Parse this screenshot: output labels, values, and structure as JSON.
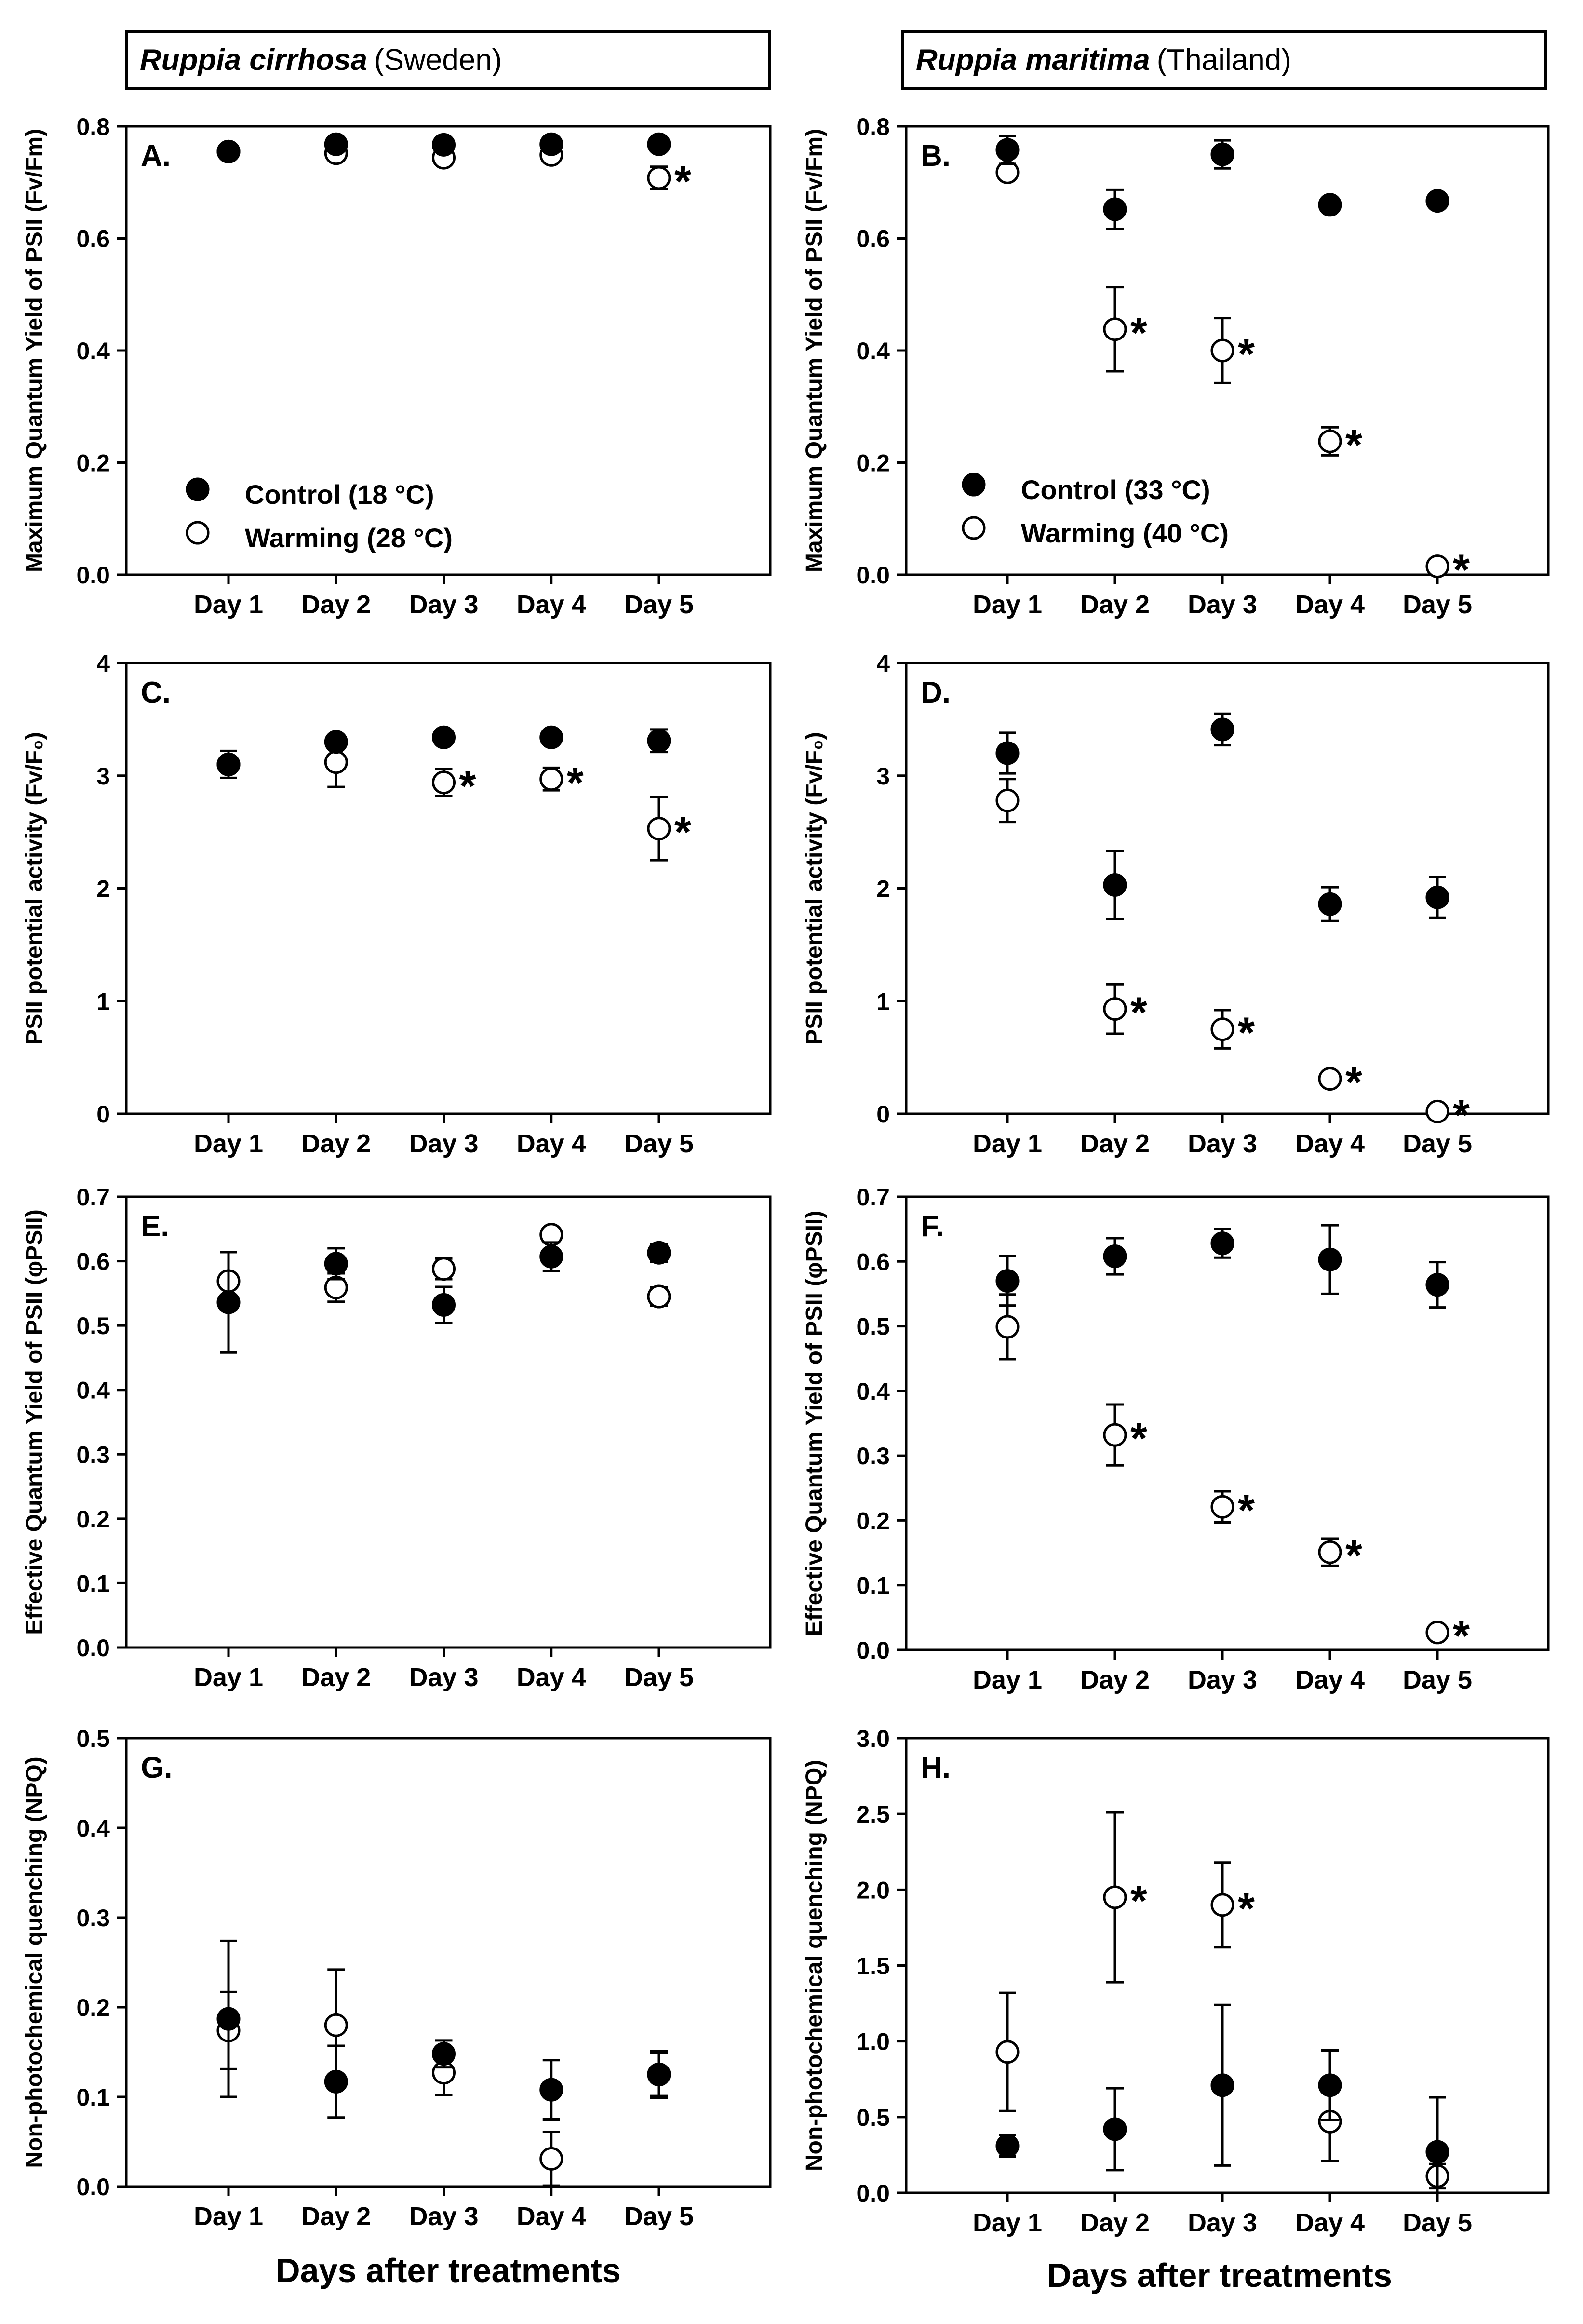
{
  "headers": {
    "left": {
      "species": "Ruppia cirrhosa",
      "location": "(Sweden)"
    },
    "right": {
      "species": "Ruppia maritima",
      "location": "(Thailand)"
    }
  },
  "x_axis_title": "Days after treatments",
  "legend_left": {
    "control": "Control (18 °C)",
    "warming": "Warming (28 °C)"
  },
  "legend_right": {
    "control": "Control (33 °C)",
    "warming": "Warming (40 °C)"
  },
  "colors": {
    "control_fill": "#000000",
    "warming_fill": "#ffffff",
    "stroke": "#000000"
  },
  "chart_data": [
    {
      "type": "scatter",
      "panel": "A.",
      "ylabel": "Maximum Quantum Yield of PSII (Fv/Fm)",
      "ylim": [
        0,
        0.8
      ],
      "yticks": [
        "0.0",
        "0.2",
        "0.4",
        "0.6",
        "0.8"
      ],
      "categories": [
        "Day 1",
        "Day 2",
        "Day 3",
        "Day 4",
        "Day 5"
      ],
      "series": [
        {
          "name": "Control",
          "values": [
            0.755,
            0.768,
            0.767,
            0.768,
            0.768
          ],
          "errors": [
            0.005,
            0.008,
            0.006,
            0.006,
            0.006
          ]
        },
        {
          "name": "Warming",
          "values": [
            0.755,
            0.752,
            0.744,
            0.749,
            0.708
          ],
          "errors": [
            0.005,
            0.006,
            0.006,
            0.006,
            0.02
          ]
        }
      ],
      "significant": [
        false,
        false,
        false,
        false,
        true
      ],
      "significance_mark": "*"
    },
    {
      "type": "scatter",
      "panel": "B.",
      "ylabel": "Maximum Quantum Yield of PSII (Fv/Fm)",
      "ylim": [
        0,
        0.8
      ],
      "yticks": [
        "0.0",
        "0.2",
        "0.4",
        "0.6",
        "0.8"
      ],
      "categories": [
        "Day 1",
        "Day 2",
        "Day 3",
        "Day 4",
        "Day 5"
      ],
      "series": [
        {
          "name": "Control",
          "values": [
            0.758,
            0.652,
            0.75,
            0.66,
            0.667
          ],
          "errors": [
            0.025,
            0.035,
            0.025,
            0.008,
            0.008
          ]
        },
        {
          "name": "Warming",
          "values": [
            0.718,
            0.438,
            0.4,
            0.238,
            0.015
          ],
          "errors": [
            0.012,
            0.075,
            0.058,
            0.025,
            0.004
          ]
        }
      ],
      "significant": [
        false,
        true,
        true,
        true,
        true
      ],
      "significance_mark": "*"
    },
    {
      "type": "scatter",
      "panel": "C.",
      "ylabel": "PSII potential activity (Fv/F₀)",
      "ylim": [
        0,
        4
      ],
      "yticks": [
        "0",
        "1",
        "2",
        "3",
        "4"
      ],
      "categories": [
        "Day 1",
        "Day 2",
        "Day 3",
        "Day 4",
        "Day 5"
      ],
      "series": [
        {
          "name": "Control",
          "values": [
            3.1,
            3.3,
            3.34,
            3.34,
            3.31
          ],
          "errors": [
            0.05,
            0.05,
            0.05,
            0.05,
            0.1
          ]
        },
        {
          "name": "Warming",
          "values": [
            3.1,
            3.12,
            2.94,
            2.97,
            2.53
          ],
          "errors": [
            0.12,
            0.22,
            0.12,
            0.1,
            0.28
          ]
        }
      ],
      "significant": [
        false,
        false,
        true,
        true,
        true
      ],
      "significance_mark": "*"
    },
    {
      "type": "scatter",
      "panel": "D.",
      "ylabel": "PSII potential activity (Fv/F₀)",
      "ylim": [
        0,
        4
      ],
      "yticks": [
        "0",
        "1",
        "2",
        "3",
        "4"
      ],
      "categories": [
        "Day 1",
        "Day 2",
        "Day 3",
        "Day 4",
        "Day 5"
      ],
      "series": [
        {
          "name": "Control",
          "values": [
            3.2,
            2.03,
            3.41,
            1.86,
            1.92
          ],
          "errors": [
            0.18,
            0.3,
            0.14,
            0.15,
            0.18
          ]
        },
        {
          "name": "Warming",
          "values": [
            2.78,
            0.93,
            0.75,
            0.31,
            0.02
          ],
          "errors": [
            0.19,
            0.22,
            0.17,
            0.04,
            0.02
          ]
        }
      ],
      "significant": [
        false,
        true,
        true,
        true,
        true
      ],
      "significance_mark": "*"
    },
    {
      "type": "scatter",
      "panel": "E.",
      "ylabel": "Effective Quantum Yield of PSII (φPSII)",
      "ylim": [
        0,
        0.7
      ],
      "yticks": [
        "0.0",
        "0.1",
        "0.2",
        "0.3",
        "0.4",
        "0.5",
        "0.6",
        "0.7"
      ],
      "categories": [
        "Day 1",
        "Day 2",
        "Day 3",
        "Day 4",
        "Day 5"
      ],
      "series": [
        {
          "name": "Control",
          "values": [
            0.536,
            0.596,
            0.532,
            0.607,
            0.613
          ],
          "errors": [
            0.078,
            0.024,
            0.028,
            0.022,
            0.014
          ]
        },
        {
          "name": "Warming",
          "values": [
            0.569,
            0.559,
            0.588,
            0.641,
            0.545
          ],
          "errors": [
            0.045,
            0.022,
            0.016,
            0.01,
            0.014
          ]
        }
      ],
      "significant": [
        false,
        false,
        false,
        false,
        false
      ],
      "significance_mark": "*"
    },
    {
      "type": "scatter",
      "panel": "F.",
      "ylabel": "Effective Quantum Yield of PSII (φPSII)",
      "ylim": [
        0,
        0.7
      ],
      "yticks": [
        "0.0",
        "0.1",
        "0.2",
        "0.3",
        "0.4",
        "0.5",
        "0.6",
        "0.7"
      ],
      "categories": [
        "Day 1",
        "Day 2",
        "Day 3",
        "Day 4",
        "Day 5"
      ],
      "series": [
        {
          "name": "Control",
          "values": [
            0.57,
            0.608,
            0.628,
            0.603,
            0.564
          ],
          "errors": [
            0.038,
            0.028,
            0.022,
            0.053,
            0.035
          ]
        },
        {
          "name": "Warming",
          "values": [
            0.499,
            0.332,
            0.221,
            0.151,
            0.027
          ],
          "errors": [
            0.05,
            0.047,
            0.024,
            0.021,
            0.005
          ]
        }
      ],
      "significant": [
        false,
        true,
        true,
        true,
        true
      ],
      "significance_mark": "*"
    },
    {
      "type": "scatter",
      "panel": "G.",
      "ylabel": "Non-photochemical quenching (NPQ)",
      "ylim": [
        0,
        0.5
      ],
      "yticks": [
        "0.0",
        "0.1",
        "0.2",
        "0.3",
        "0.4",
        "0.5"
      ],
      "categories": [
        "Day 1",
        "Day 2",
        "Day 3",
        "Day 4",
        "Day 5"
      ],
      "series": [
        {
          "name": "Control",
          "values": [
            0.187,
            0.117,
            0.148,
            0.108,
            0.125
          ],
          "errors": [
            0.087,
            0.04,
            0.015,
            0.033,
            0.024
          ]
        },
        {
          "name": "Warming",
          "values": [
            0.174,
            0.18,
            0.127,
            0.031,
            0.125
          ],
          "errors": [
            0.043,
            0.062,
            0.025,
            0.03,
            0.026
          ]
        }
      ],
      "significant": [
        false,
        false,
        false,
        false,
        false
      ],
      "significance_mark": "*"
    },
    {
      "type": "scatter",
      "panel": "H.",
      "ylabel": "Non-photochemical quenching (NPQ)",
      "ylim": [
        0,
        3.0
      ],
      "yticks": [
        "0.0",
        "0.5",
        "1.0",
        "1.5",
        "2.0",
        "2.5",
        "3.0"
      ],
      "categories": [
        "Day 1",
        "Day 2",
        "Day 3",
        "Day 4",
        "Day 5"
      ],
      "series": [
        {
          "name": "Control",
          "values": [
            0.31,
            0.42,
            0.71,
            0.71,
            0.27
          ],
          "errors": [
            0.07,
            0.27,
            0.53,
            0.23,
            0.36
          ]
        },
        {
          "name": "Warming",
          "values": [
            0.93,
            1.95,
            1.9,
            0.47,
            0.11
          ],
          "errors": [
            0.39,
            0.56,
            0.28,
            0.26,
            0.08
          ]
        }
      ],
      "significant": [
        false,
        true,
        true,
        false,
        false
      ],
      "significance_mark": "*"
    }
  ]
}
